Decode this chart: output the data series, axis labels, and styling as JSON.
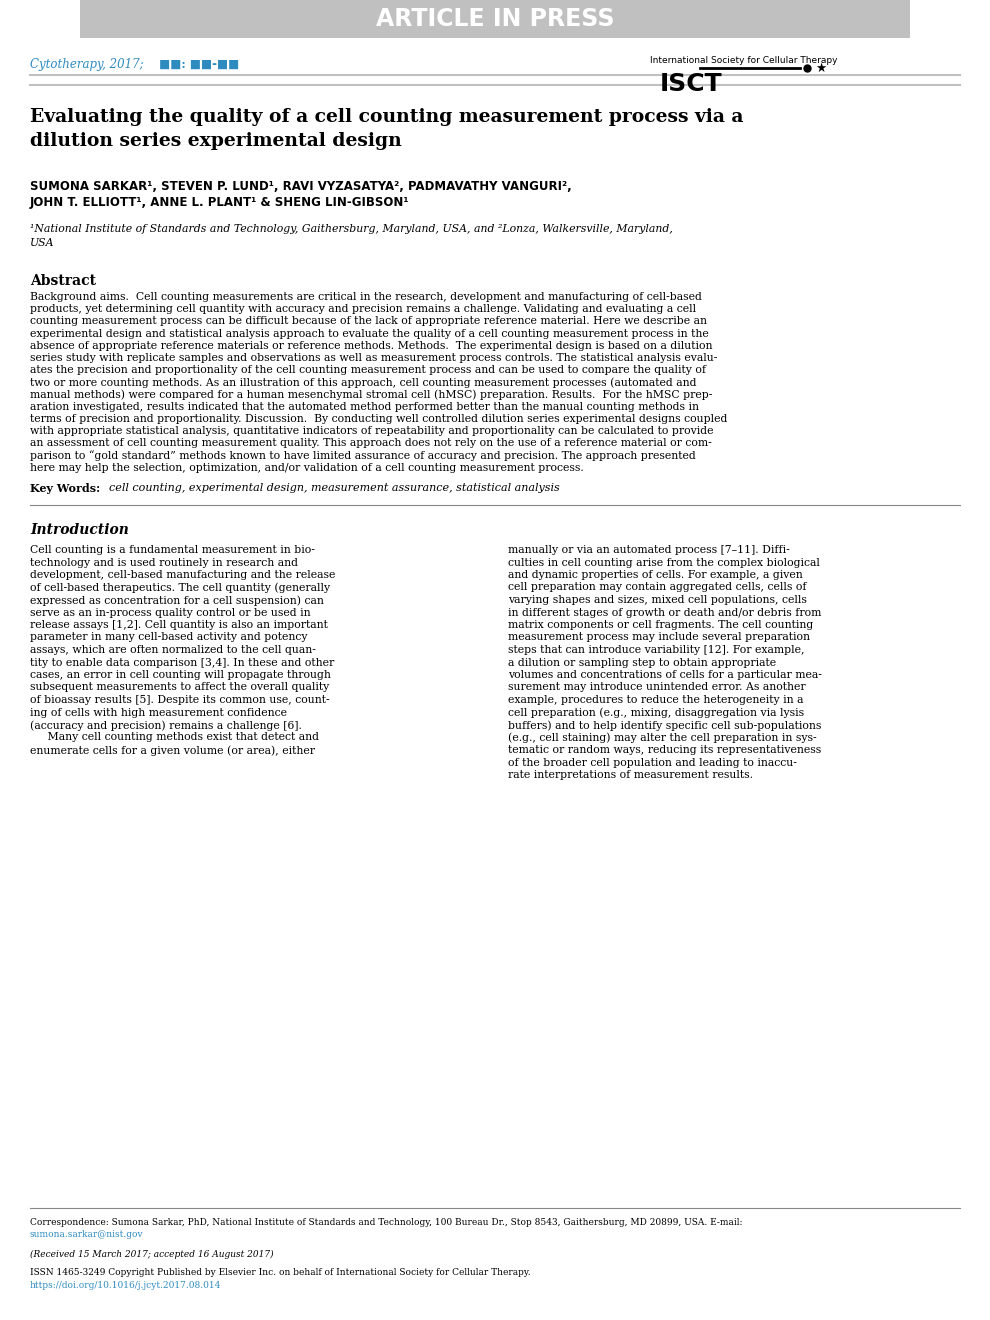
{
  "header_banner_text": "ARTICLE IN PRESS",
  "header_banner_color": "#b0b0b0",
  "header_banner_text_color": "#ffffff",
  "journal_text": "Cytotherapy, 2017;",
  "journal_text_color": "#2e8bc0",
  "journal_blocks": "■■: ■■-■■",
  "isct_text": "International Society for Cellular Therapy",
  "isct_logo": "ISCT",
  "article_title": "Evaluating the quality of a cell counting measurement process via a\ndilution series experimental design",
  "authors_line1": "SUMONA SARKAR¹, STEVEN P. LUND¹, RAVI VYZASATYA², PADMAVATHY VANGURI²,",
  "authors_line2": "JOHN T. ELLIOTT¹, ANNE L. PLANT¹ & SHENG LIN-GIBSON¹",
  "affiliation": "¹National Institute of Standards and Technology, Gaithersburg, Maryland, USA, and ²Lonza, Walkersville, Maryland, USA",
  "abstract_heading": "Abstract",
  "abstract_background_label": "Background aims.",
  "abstract_background_text": "  Cell counting measurements are critical in the research, development and manufacturing of cell-based products, yet determining cell quantity with accuracy and precision remains a challenge. Validating and evaluating a cell counting measurement process can be difficult because of the lack of appropriate reference material. Here we describe an experimental design and statistical analysis approach to evaluate the quality of a cell counting measurement process in the absence of appropriate reference materials or reference methods.",
  "abstract_methods_label": "Methods.",
  "abstract_methods_text": "  The experimental design is based on a dilution series study with replicate samples and observations as well as measurement process controls. The statistical analysis evaluates the precision and proportionality of the cell counting measurement process and can be used to compare the quality of two or more counting methods. As an illustration of this approach, cell counting measurement processes (automated and manual methods) were compared for a human mesenchymal stromal cell (hMSC) preparation.",
  "abstract_results_label": "Results.",
  "abstract_results_text": "  For the hMSC preparation investigated, results indicated that the automated method performed better than the manual counting methods in terms of precision and proportionality.",
  "abstract_discussion_label": "Discussion.",
  "abstract_discussion_text": "  By conducting well controlled dilution series experimental designs coupled with appropriate statistical analysis, quantitative indicators of repeatability and proportionality can be calculated to provide an assessment of cell counting measurement quality. This approach does not rely on the use of a reference material or comparison to “gold standard” methods known to have limited assurance of accuracy and precision. The approach presented here may help the selection, optimization, and/or validation of a cell counting measurement process.",
  "keywords_label": "Key Words:",
  "keywords_text": "  cell counting, experimental design, measurement assurance, statistical analysis",
  "intro_heading": "Introduction",
  "intro_col1_para1": "Cell counting is a fundamental measurement in biotechnology and is used routinely in research and development, cell-based manufacturing and the release of cell-based therapeutics. The cell quantity (generally expressed as concentration for a cell suspension) can serve as an in-process quality control or be used in release assays [1,2]. Cell quantity is also an important parameter in many cell-based activity and potency assays, which are often normalized to the cell quantity to enable data comparison [3,4]. In these and other cases, an error in cell counting will propagate through subsequent measurements to affect the overall quality of bioassay results [5]. Despite its common use, counting of cells with high measurement confidence (accuracy and precision) remains a challenge [6].",
  "intro_col1_para2": "     Many cell counting methods exist that detect and enumerate cells for a given volume (or area), either",
  "intro_col2_para1": "manually or via an automated process [7–11]. Difficulties in cell counting arise from the complex biological and dynamic properties of cells. For example, a given cell preparation may contain aggregated cells, cells of varying shapes and sizes, mixed cell populations, cells in different stages of growth or death and/or debris from matrix components or cell fragments. The cell counting measurement process may include several preparation steps that can introduce variability [12]. For example, a dilution or sampling step to obtain appropriate volumes and concentrations of cells for a particular measurement may introduce unintended error. As another example, procedures to reduce the heterogeneity in a cell preparation (e.g., mixing, disaggregation via lysis buffers) and to help identify specific cell sub-populations (e.g., cell staining) may alter the cell preparation in systematic or random ways, reducing its representativeness of the broader cell population and leading to inaccurate interpretations of measurement results.",
  "footer_line1": "Correspondence: Sumona Sarkar, PhD, National Institute of Standards and Technology, 100 Bureau Dr., Stop 8543, Gaithersburg, MD 20899, USA. E-mail:",
  "footer_email": "sumona.sarkar@nist.gov",
  "footer_received": "(Received 15 March 2017; accepted 16 August 2017)",
  "footer_issn": "ISSN 1465-3249 Copyright Published by Elsevier Inc. on behalf of International Society for Cellular Therapy.",
  "footer_doi": "https://doi.org/10.1016/j.jcyt.2017.08.014",
  "link_color": "#2e8bc0",
  "text_color": "#000000",
  "bg_color": "#ffffff"
}
